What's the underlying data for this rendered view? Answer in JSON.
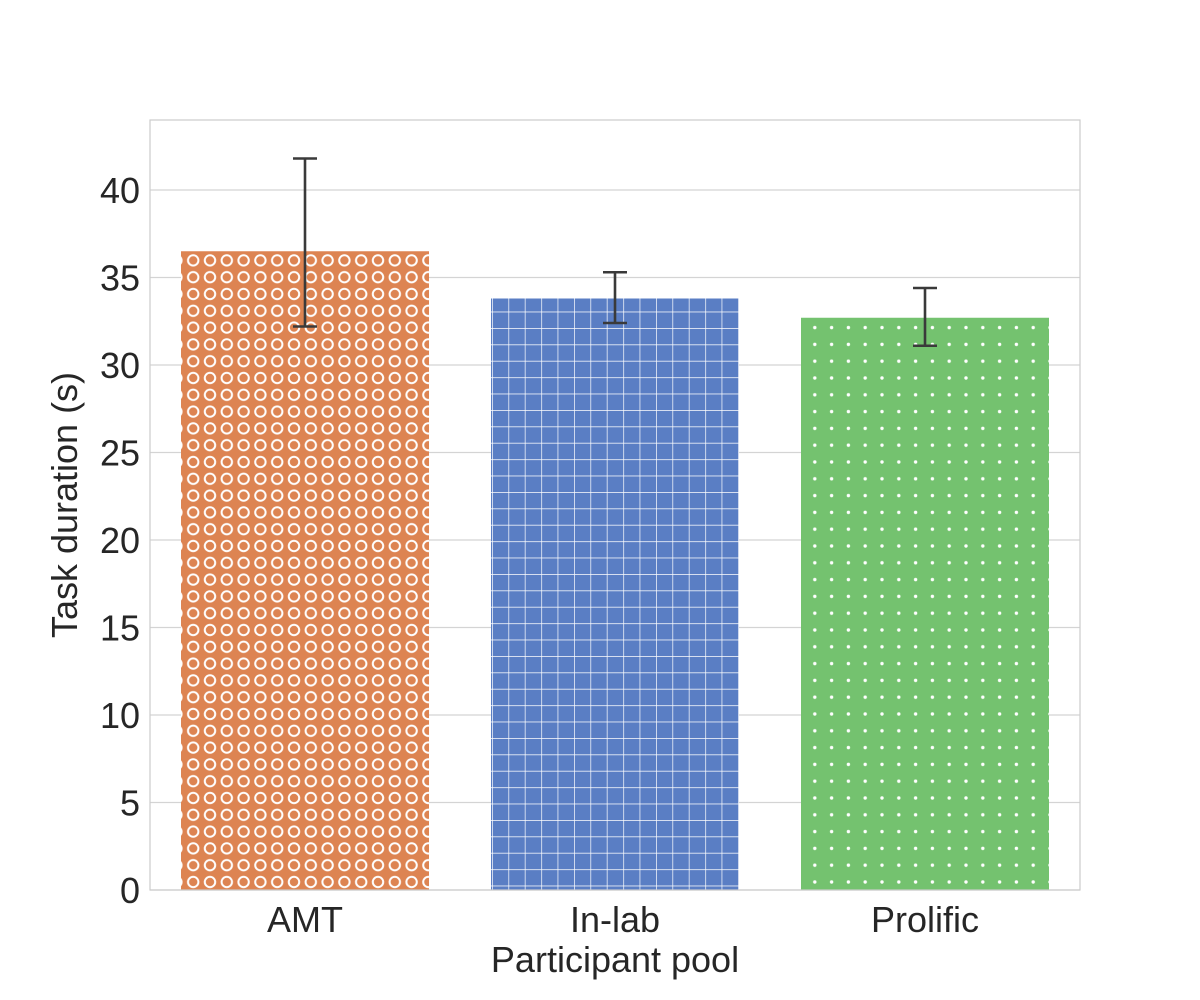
{
  "chart_data": {
    "type": "bar",
    "title": "",
    "xlabel": "Participant pool",
    "ylabel": "Task duration (s)",
    "categories": [
      "AMT",
      "In-lab",
      "Prolific"
    ],
    "values": [
      36.5,
      33.8,
      32.7
    ],
    "error_low": [
      32.2,
      32.4,
      31.1
    ],
    "error_high": [
      41.8,
      35.3,
      34.4
    ],
    "ylim": [
      0,
      44
    ],
    "yticks": [
      0,
      5,
      10,
      15,
      20,
      25,
      30,
      35,
      40
    ],
    "grid": "horizontal",
    "bar_colors": [
      "#dd8452",
      "#5a7ec4",
      "#74c26f"
    ],
    "bar_patterns": [
      "circles",
      "grid",
      "dots"
    ],
    "errorbar_color": "#3a3a3a",
    "gridline_color": "#d4d4d4",
    "spine_color": "#cccccc"
  }
}
